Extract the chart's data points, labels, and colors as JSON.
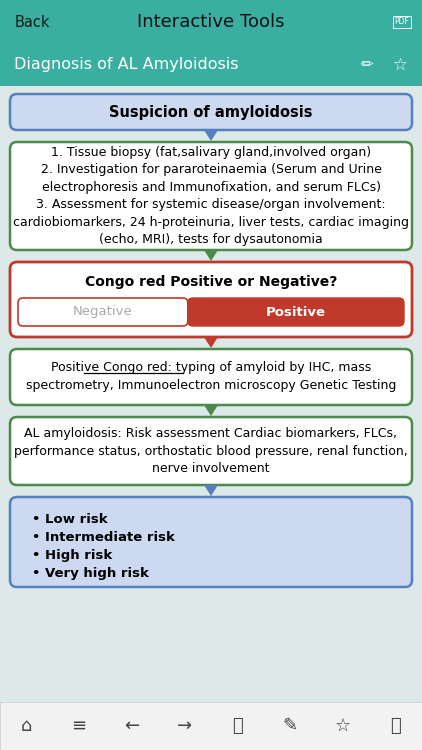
{
  "title_bar_color": "#3aaea0",
  "title_bar_text": "Interactive Tools",
  "title_bar_back": "Back",
  "subtitle_text": "Diagnosis of AL Amyloidosis",
  "bg_color": "#dde8e8",
  "box1_text": "Suspicion of amyloidosis",
  "box1_bg": "#ccd9f0",
  "box1_border": "#5580c0",
  "box2_text": "1. Tissue biopsy (fat,salivary gland,involved organ)\n2. Investigation for pararoteinaemia (Serum and Urine\nelectrophoresis and Immunofixation, and serum FLCs)\n3. Assessment for systemic disease/organ involvement:\ncardiobiomarkers, 24 h-proteinuria, liver tests, cardiac imaging\n(echo, MRI), tests for dysautonomia",
  "box2_bg": "#ffffff",
  "box2_border": "#4a8a4a",
  "box3_text": "Congo red Positive or Negative?",
  "box3_bg": "#ffffff",
  "box3_border": "#c0392b",
  "neg_text": "Negative",
  "neg_bg": "#ffffff",
  "neg_fg": "#aaaaaa",
  "pos_text": "Positive",
  "pos_bg": "#c0392b",
  "pos_fg": "#ffffff",
  "box4_line1": "Positive Congo red: typing of amyloid by IHC, mass",
  "box4_line2": "spectrometry, Immunoelectron microscopy Genetic Testing",
  "box4_bg": "#ffffff",
  "box4_border": "#4a8a4a",
  "box5_text": "AL amyloidosis: Risk assessment Cardiac biomarkers, FLCs,\nperformance status, orthostatic blood pressure, renal function,\nnerve involvement",
  "box5_bg": "#ffffff",
  "box5_border": "#4a8a4a",
  "box6_lines": [
    "• Low risk",
    "• Intermediate risk",
    "• High risk",
    "• Very high risk"
  ],
  "box6_bg": "#ccd9f0",
  "box6_border": "#5580c0",
  "arrow_blue": "#5580c0",
  "arrow_green": "#4a8a4a",
  "arrow_red": "#c0392b",
  "nav_bg": "#f2f2f2",
  "nav_border": "#cccccc",
  "nav_icon_color": "#444444",
  "figw": 4.22,
  "figh": 7.5,
  "dpi": 100
}
